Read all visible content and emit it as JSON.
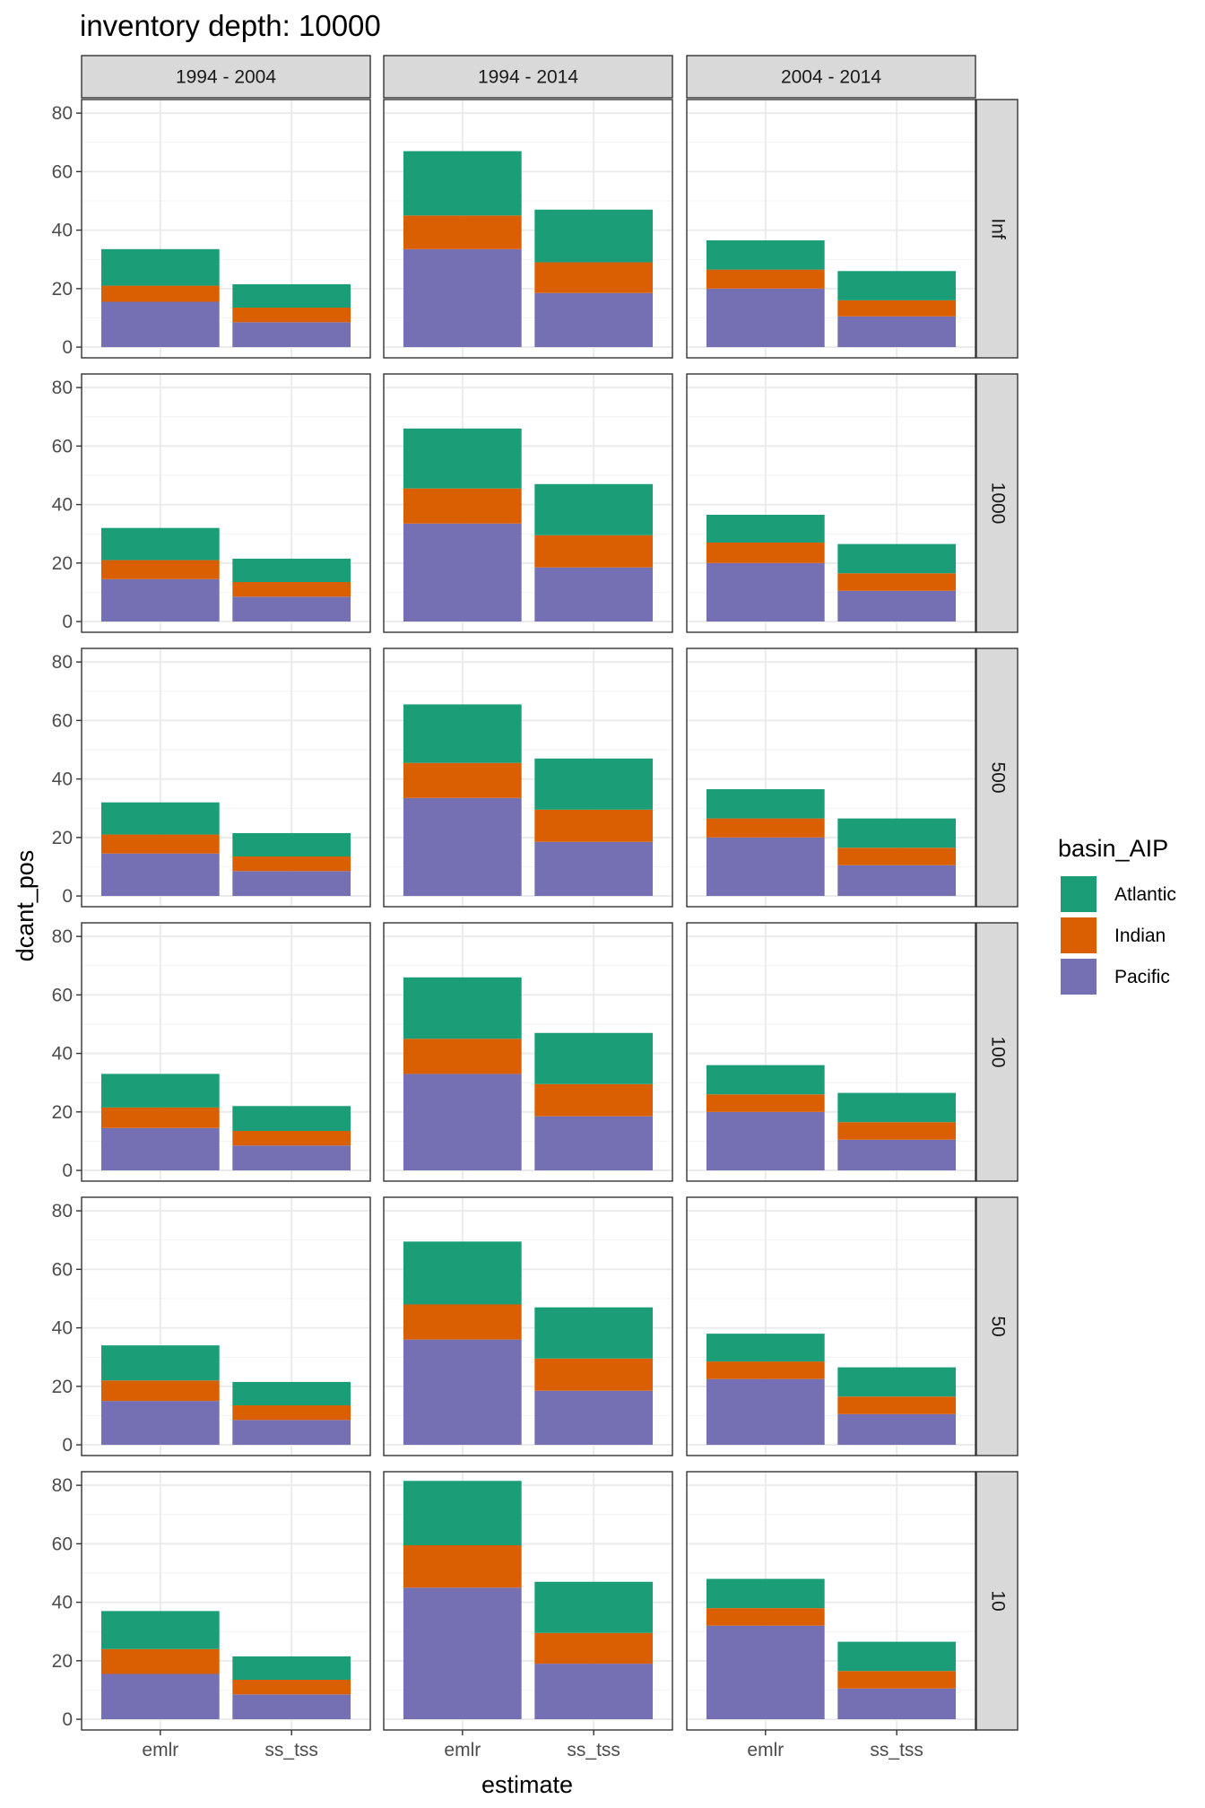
{
  "chart_data": {
    "type": "bar",
    "stacked": true,
    "title": "inventory depth: 10000",
    "xlabel": "estimate",
    "ylabel": "dcant_pos",
    "ylim": [
      0,
      84
    ],
    "yticks": [
      0,
      20,
      40,
      60,
      80
    ],
    "categories": [
      "emlr",
      "ss_tss"
    ],
    "column_facets": [
      "1994 - 2004",
      "1994 - 2014",
      "2004 - 2014"
    ],
    "row_facets": [
      "Inf",
      "1000",
      "500",
      "100",
      "50",
      "10"
    ],
    "legend": {
      "title": "basin_AIP",
      "position": "right",
      "entries": [
        {
          "name": "Atlantic",
          "color": "#1B9E77"
        },
        {
          "name": "Indian",
          "color": "#D95F02"
        },
        {
          "name": "Pacific",
          "color": "#7570B3"
        }
      ]
    },
    "stack_order": [
      "Pacific",
      "Indian",
      "Atlantic"
    ],
    "grid": true,
    "panels": [
      {
        "row": "Inf",
        "col": "1994 - 2004",
        "series": {
          "Pacific": [
            15.5,
            8.5
          ],
          "Indian": [
            5.5,
            5.0
          ],
          "Atlantic": [
            12.5,
            8.0
          ]
        }
      },
      {
        "row": "Inf",
        "col": "1994 - 2014",
        "series": {
          "Pacific": [
            33.5,
            18.5
          ],
          "Indian": [
            11.5,
            10.5
          ],
          "Atlantic": [
            22.0,
            18.0
          ]
        }
      },
      {
        "row": "Inf",
        "col": "2004 - 2014",
        "series": {
          "Pacific": [
            20.0,
            10.5
          ],
          "Indian": [
            6.5,
            5.5
          ],
          "Atlantic": [
            10.0,
            10.0
          ]
        }
      },
      {
        "row": "1000",
        "col": "1994 - 2004",
        "series": {
          "Pacific": [
            14.5,
            8.5
          ],
          "Indian": [
            6.5,
            5.0
          ],
          "Atlantic": [
            11.0,
            8.0
          ]
        }
      },
      {
        "row": "1000",
        "col": "1994 - 2014",
        "series": {
          "Pacific": [
            33.5,
            18.5
          ],
          "Indian": [
            12.0,
            11.0
          ],
          "Atlantic": [
            20.5,
            17.5
          ]
        }
      },
      {
        "row": "1000",
        "col": "2004 - 2014",
        "series": {
          "Pacific": [
            20.0,
            10.5
          ],
          "Indian": [
            7.0,
            6.0
          ],
          "Atlantic": [
            9.5,
            10.0
          ]
        }
      },
      {
        "row": "500",
        "col": "1994 - 2004",
        "series": {
          "Pacific": [
            14.5,
            8.5
          ],
          "Indian": [
            6.5,
            5.0
          ],
          "Atlantic": [
            11.0,
            8.0
          ]
        }
      },
      {
        "row": "500",
        "col": "1994 - 2014",
        "series": {
          "Pacific": [
            33.5,
            18.5
          ],
          "Indian": [
            12.0,
            11.0
          ],
          "Atlantic": [
            20.0,
            17.5
          ]
        }
      },
      {
        "row": "500",
        "col": "2004 - 2014",
        "series": {
          "Pacific": [
            20.0,
            10.5
          ],
          "Indian": [
            6.5,
            6.0
          ],
          "Atlantic": [
            10.0,
            10.0
          ]
        }
      },
      {
        "row": "100",
        "col": "1994 - 2004",
        "series": {
          "Pacific": [
            14.5,
            8.5
          ],
          "Indian": [
            7.0,
            5.0
          ],
          "Atlantic": [
            11.5,
            8.5
          ]
        }
      },
      {
        "row": "100",
        "col": "1994 - 2014",
        "series": {
          "Pacific": [
            33.0,
            18.5
          ],
          "Indian": [
            12.0,
            11.0
          ],
          "Atlantic": [
            21.0,
            17.5
          ]
        }
      },
      {
        "row": "100",
        "col": "2004 - 2014",
        "series": {
          "Pacific": [
            20.0,
            10.5
          ],
          "Indian": [
            6.0,
            6.0
          ],
          "Atlantic": [
            10.0,
            10.0
          ]
        }
      },
      {
        "row": "50",
        "col": "1994 - 2004",
        "series": {
          "Pacific": [
            15.0,
            8.5
          ],
          "Indian": [
            7.0,
            5.0
          ],
          "Atlantic": [
            12.0,
            8.0
          ]
        }
      },
      {
        "row": "50",
        "col": "1994 - 2014",
        "series": {
          "Pacific": [
            36.0,
            18.5
          ],
          "Indian": [
            12.0,
            11.0
          ],
          "Atlantic": [
            21.5,
            17.5
          ]
        }
      },
      {
        "row": "50",
        "col": "2004 - 2014",
        "series": {
          "Pacific": [
            22.5,
            10.5
          ],
          "Indian": [
            6.0,
            6.0
          ],
          "Atlantic": [
            9.5,
            10.0
          ]
        }
      },
      {
        "row": "10",
        "col": "1994 - 2004",
        "series": {
          "Pacific": [
            15.5,
            8.5
          ],
          "Indian": [
            8.5,
            5.0
          ],
          "Atlantic": [
            13.0,
            8.0
          ]
        }
      },
      {
        "row": "10",
        "col": "1994 - 2014",
        "series": {
          "Pacific": [
            45.0,
            19.0
          ],
          "Indian": [
            14.5,
            10.5
          ],
          "Atlantic": [
            22.0,
            17.5
          ]
        }
      },
      {
        "row": "10",
        "col": "2004 - 2014",
        "series": {
          "Pacific": [
            32.0,
            10.5
          ],
          "Indian": [
            6.0,
            6.0
          ],
          "Atlantic": [
            10.0,
            10.0
          ]
        }
      }
    ]
  }
}
